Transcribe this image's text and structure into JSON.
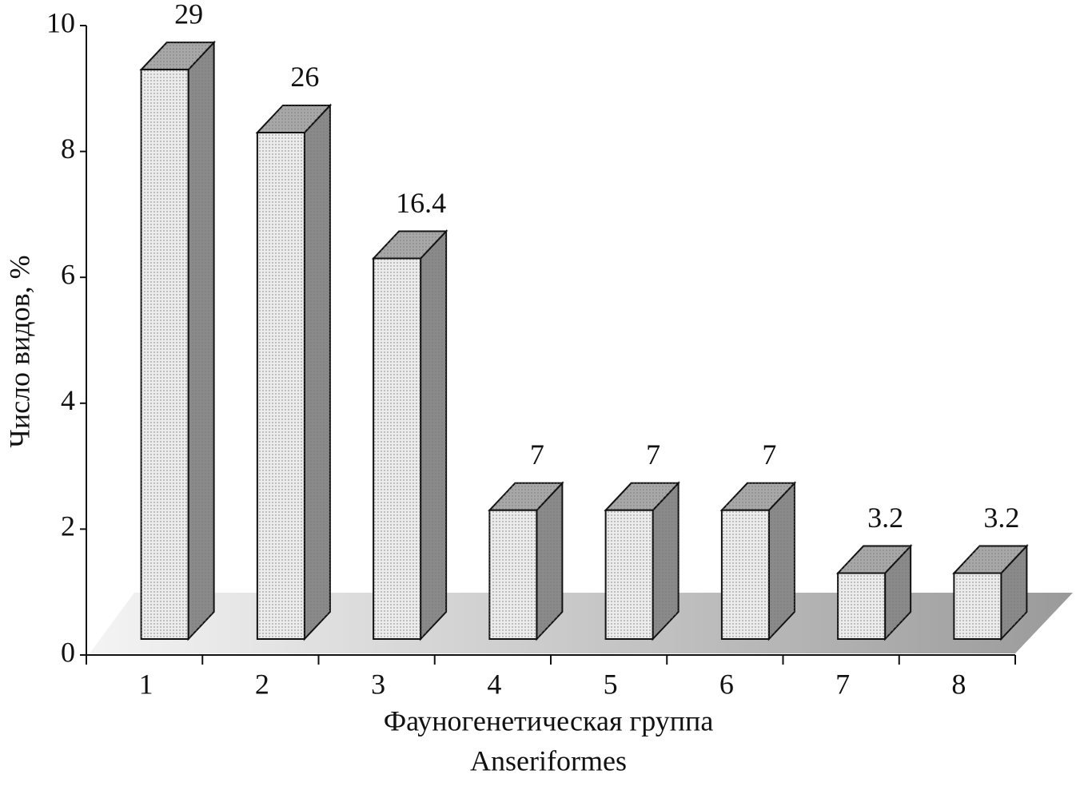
{
  "chart_data": {
    "type": "bar3d",
    "y_label": "Число видов, %",
    "x_label": "Фауногенетическая группа",
    "subtitle": "Anseriformes",
    "categories": [
      "1",
      "2",
      "3",
      "4",
      "5",
      "6",
      "7",
      "8"
    ],
    "values": [
      9.3,
      8.3,
      6.3,
      2.3,
      2.3,
      2.3,
      1.3,
      1.3
    ],
    "labels": [
      "29",
      "26",
      "16.4",
      "7",
      "7",
      "7",
      "3.2",
      "3.2"
    ],
    "ylim": [
      0,
      10
    ],
    "yticks": [
      0,
      2,
      4,
      6,
      8,
      10
    ],
    "colors": {
      "front": "#ececec",
      "top": "#a8a8a8",
      "side": "#8a8a8a"
    }
  }
}
